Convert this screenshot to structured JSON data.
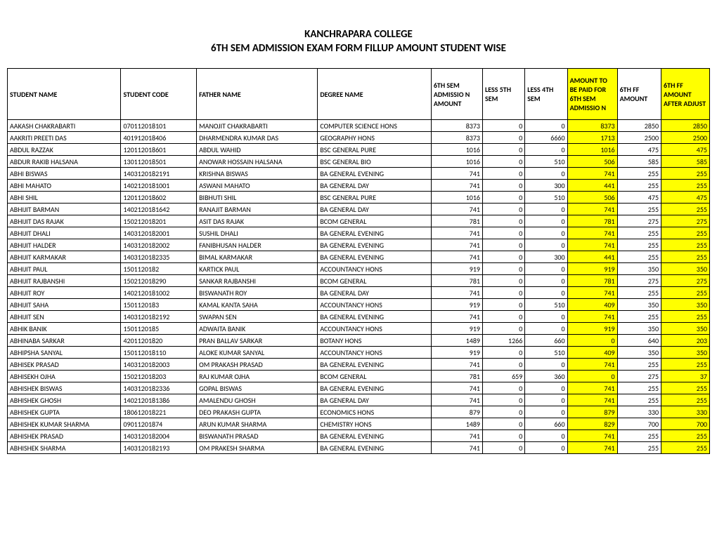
{
  "title_line1": "KANCHRAPARA COLLEGE",
  "title_line2": "6TH SEM ADMISSION EXAM FORM FILLUP AMOUNT STUDENT WISE",
  "colors": {
    "highlight": "#ffff00",
    "border": "#000000",
    "background": "#ffffff",
    "text": "#000000"
  },
  "table": {
    "columns": [
      {
        "label": "STUDENT NAME",
        "align": "left",
        "highlight": false
      },
      {
        "label": "STUDENT CODE",
        "align": "left",
        "highlight": false
      },
      {
        "label": "FATHER NAME",
        "align": "left",
        "highlight": false
      },
      {
        "label": "DEGREE NAME",
        "align": "left",
        "highlight": false
      },
      {
        "label": "6TH SEM ADMISSIO N AMOUNT",
        "align": "right",
        "highlight": false
      },
      {
        "label": "LESS 5TH SEM",
        "align": "right",
        "highlight": false
      },
      {
        "label": "LESS 4TH SEM",
        "align": "right",
        "highlight": false
      },
      {
        "label": "AMOUNT TO BE PAID FOR 6TH SEM ADMISSIO N",
        "align": "right",
        "highlight": true
      },
      {
        "label": "6TH FF AMOUNT",
        "align": "right",
        "highlight": false
      },
      {
        "label": "6TH FF AMOUNT AFTER ADJUST",
        "align": "right",
        "highlight": true
      }
    ],
    "rows": [
      [
        "AAKASH CHAKRABARTI",
        "070112018101",
        "MANOJIT CHAKRABARTI",
        "COMPUTER SCIENCE HONS",
        "8373",
        "0",
        "0",
        "8373",
        "2850",
        "2850"
      ],
      [
        "AAKRITI PREETI DAS",
        "401912018406",
        "DHARMENDRA KUMAR DAS",
        "GEOGRAPHY HONS",
        "8373",
        "0",
        "6660",
        "1713",
        "2500",
        "2500"
      ],
      [
        "ABDUL RAZZAK",
        "120112018601",
        "ABDUL WAHID",
        "BSC GENERAL PURE",
        "1016",
        "0",
        "0",
        "1016",
        "475",
        "475"
      ],
      [
        "ABDUR RAKIB HALSANA",
        "130112018501",
        "ANOWAR HOSSAIN HALSANA",
        "BSC GENERAL BIO",
        "1016",
        "0",
        "510",
        "506",
        "585",
        "585"
      ],
      [
        "ABHI BISWAS",
        "1403120182191",
        "KRISHNA BISWAS",
        "BA GENERAL EVENING",
        "741",
        "0",
        "0",
        "741",
        "255",
        "255"
      ],
      [
        "ABHI MAHATO",
        "1402120181001",
        "ASWANI MAHATO",
        "BA GENERAL DAY",
        "741",
        "0",
        "300",
        "441",
        "255",
        "255"
      ],
      [
        "ABHI SHIL",
        "120112018602",
        "BIBHUTI SHIL",
        "BSC GENERAL PURE",
        "1016",
        "0",
        "510",
        "506",
        "475",
        "475"
      ],
      [
        "ABHIJIT BARMAN",
        "1402120181642",
        "RANAJIT BARMAN",
        "BA GENERAL DAY",
        "741",
        "0",
        "0",
        "741",
        "255",
        "255"
      ],
      [
        "ABHIJIT DAS RAJAK",
        "150212018201",
        "ASIT DAS RAJAK",
        "BCOM GENERAL",
        "781",
        "0",
        "0",
        "781",
        "275",
        "275"
      ],
      [
        "ABHIJIT DHALI",
        "1403120182001",
        "SUSHIL DHALI",
        "BA GENERAL EVENING",
        "741",
        "0",
        "0",
        "741",
        "255",
        "255"
      ],
      [
        "ABHIJIT HALDER",
        "1403120182002",
        "FANIBHUSAN HALDER",
        "BA GENERAL EVENING",
        "741",
        "0",
        "0",
        "741",
        "255",
        "255"
      ],
      [
        "ABHIJIT KARMAKAR",
        "1403120182335",
        "BIMAL KARMAKAR",
        "BA GENERAL EVENING",
        "741",
        "0",
        "300",
        "441",
        "255",
        "255"
      ],
      [
        "ABHIJIT PAUL",
        "1501120182",
        "KARTICK PAUL",
        "ACCOUNTANCY HONS",
        "919",
        "0",
        "0",
        "919",
        "350",
        "350"
      ],
      [
        "ABHIJIT RAJBANSHI",
        "150212018290",
        "SANKAR RAJBANSHI",
        "BCOM GENERAL",
        "781",
        "0",
        "0",
        "781",
        "275",
        "275"
      ],
      [
        "ABHIJIT ROY",
        "1402120181002",
        "BISWANATH ROY",
        "BA GENERAL DAY",
        "741",
        "0",
        "0",
        "741",
        "255",
        "255"
      ],
      [
        "ABHIJIT SAHA",
        "1501120183",
        "KAMAL KANTA SAHA",
        "ACCOUNTANCY HONS",
        "919",
        "0",
        "510",
        "409",
        "350",
        "350"
      ],
      [
        "ABHIJIT SEN",
        "1403120182192",
        "SWAPAN SEN",
        "BA GENERAL EVENING",
        "741",
        "0",
        "0",
        "741",
        "255",
        "255"
      ],
      [
        "ABHIK BANIK",
        "1501120185",
        "ADWAITA BANIK",
        "ACCOUNTANCY HONS",
        "919",
        "0",
        "0",
        "919",
        "350",
        "350"
      ],
      [
        "ABHINABA SARKAR",
        "42011201820",
        "PRAN BALLAV SARKAR",
        "BOTANY HONS",
        "1489",
        "1266",
        "660",
        "0",
        "640",
        "203"
      ],
      [
        "ABHIPSHA SANYAL",
        "150112018110",
        "ALOKE KUMAR SANYAL",
        "ACCOUNTANCY HONS",
        "919",
        "0",
        "510",
        "409",
        "350",
        "350"
      ],
      [
        "ABHISEK PRASAD",
        "1403120182003",
        "OM PRAKASH PRASAD",
        "BA GENERAL EVENING",
        "741",
        "0",
        "0",
        "741",
        "255",
        "255"
      ],
      [
        "ABHISEKH OJHA",
        "150212018203",
        "RAJ KUMAR OJHA",
        "BCOM GENERAL",
        "781",
        "659",
        "360",
        "0",
        "275",
        "37"
      ],
      [
        "ABHISHEK BISWAS",
        "1403120182336",
        "GOPAL BISWAS",
        "BA GENERAL EVENING",
        "741",
        "0",
        "0",
        "741",
        "255",
        "255"
      ],
      [
        "ABHISHEK GHOSH",
        "1402120181386",
        "AMALENDU GHOSH",
        "BA GENERAL DAY",
        "741",
        "0",
        "0",
        "741",
        "255",
        "255"
      ],
      [
        "ABHISHEK GUPTA",
        "180612018221",
        "DEO PRAKASH GUPTA",
        "ECONOMICS HONS",
        "879",
        "0",
        "0",
        "879",
        "330",
        "330"
      ],
      [
        "ABHISHEK KUMAR SHARMA",
        "09011201874",
        "ARUN KUMAR SHARMA",
        "CHEMISTRY HONS",
        "1489",
        "0",
        "660",
        "829",
        "700",
        "700"
      ],
      [
        "ABHISHEK PRASAD",
        "1403120182004",
        "BISWANATH PRASAD",
        "BA GENERAL EVENING",
        "741",
        "0",
        "0",
        "741",
        "255",
        "255"
      ],
      [
        "ABHISHEK SHARMA",
        "1403120182193",
        "OM PRAKESH SHARMA",
        "BA GENERAL EVENING",
        "741",
        "0",
        "0",
        "741",
        "255",
        "255"
      ]
    ]
  }
}
